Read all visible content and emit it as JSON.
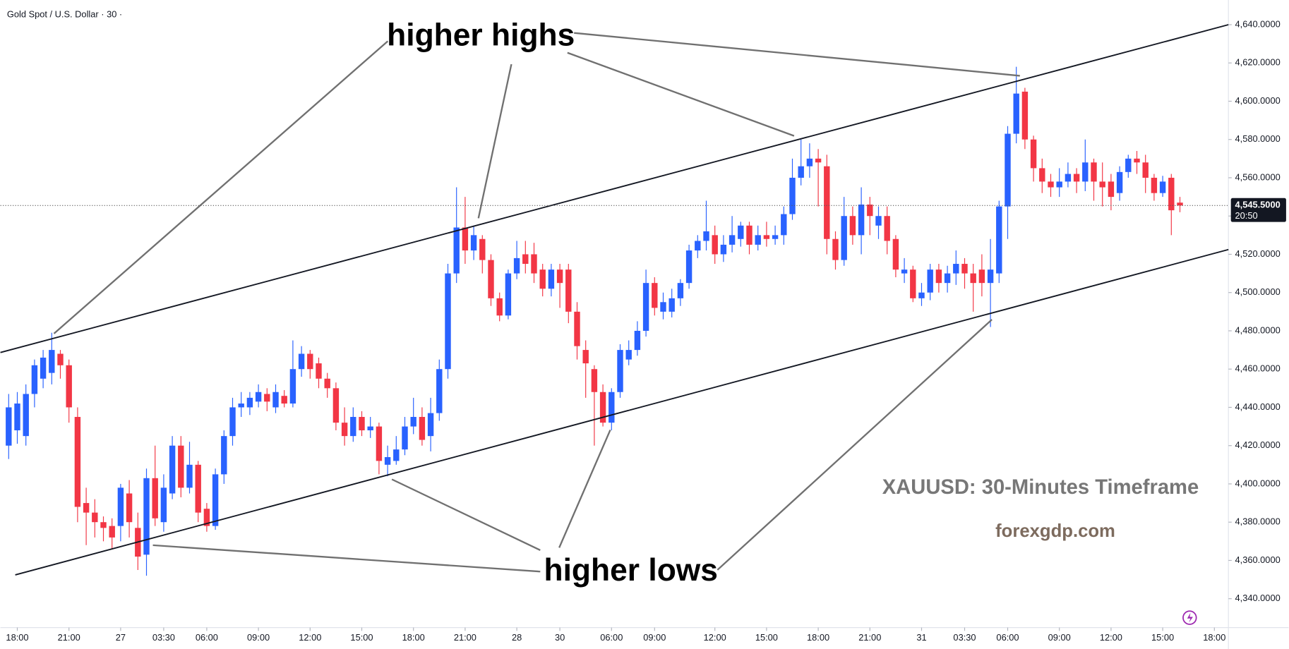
{
  "chart_data": {
    "type": "candlestick",
    "title": "Gold Spot / U.S. Dollar · 30 ·",
    "up_color": "#2962ff",
    "down_color": "#f23645",
    "open": [
      4420,
      4428,
      4425,
      4447,
      4455,
      4458,
      4468,
      4462,
      4435,
      4390,
      4385,
      4380,
      4378,
      4378,
      4395,
      4377,
      4363,
      4403,
      4380,
      4395,
      4420,
      4398,
      4410,
      4387,
      4378,
      4405,
      4425,
      4440,
      4440,
      4443,
      4447,
      4440,
      4446,
      4442,
      4460,
      4468,
      4463,
      4455,
      4450,
      4432,
      4425,
      4435,
      4428,
      4430,
      4410,
      4412,
      4418,
      4430,
      4435,
      4425,
      4437,
      4460,
      4510,
      4534,
      4522,
      4528,
      4517,
      4497,
      4488,
      4510,
      4520,
      4520,
      4512,
      4502,
      4512,
      4512,
      4490,
      4470,
      4460,
      4448,
      4432,
      4448,
      4465,
      4470,
      4480,
      4505,
      4490,
      4490,
      4497,
      4505,
      4522,
      4527,
      4530,
      4520,
      4525,
      4528,
      4535,
      4525,
      4530,
      4528,
      4530,
      4541,
      4560,
      4566,
      4570,
      4566,
      4528,
      4517,
      4540,
      4530,
      4546,
      4535,
      4540,
      4528,
      4510,
      4512,
      4497,
      4500,
      4512,
      4505,
      4510,
      4515,
      4510,
      4512,
      4505,
      4510,
      4545,
      4583,
      4605,
      4580,
      4565,
      4558,
      4555,
      4558,
      4562,
      4558,
      4568,
      4558,
      4558,
      4552,
      4563,
      4570,
      4568,
      4560,
      4552,
      4560,
      4547
    ],
    "high": [
      4447,
      4448,
      4452,
      4465,
      4470,
      4479,
      4470,
      4465,
      4440,
      4398,
      4392,
      4383,
      4382,
      4400,
      4402,
      4385,
      4408,
      4420,
      4405,
      4425,
      4425,
      4422,
      4412,
      4390,
      4408,
      4428,
      4445,
      4448,
      4448,
      4452,
      4450,
      4452,
      4449,
      4475,
      4472,
      4470,
      4466,
      4458,
      4453,
      4440,
      4440,
      4438,
      4435,
      4432,
      4420,
      4425,
      4435,
      4445,
      4440,
      4445,
      4465,
      4515,
      4555,
      4550,
      4535,
      4530,
      4520,
      4500,
      4512,
      4527,
      4527,
      4526,
      4515,
      4515,
      4515,
      4515,
      4495,
      4475,
      4462,
      4452,
      4450,
      4473,
      4475,
      4485,
      4512,
      4508,
      4500,
      4502,
      4507,
      4525,
      4530,
      4548,
      4535,
      4530,
      4540,
      4537,
      4537,
      4535,
      4537,
      4535,
      4545,
      4570,
      4580,
      4578,
      4575,
      4572,
      4532,
      4550,
      4545,
      4555,
      4550,
      4545,
      4545,
      4530,
      4518,
      4514,
      4505,
      4515,
      4515,
      4514,
      4522,
      4518,
      4515,
      4520,
      4528,
      4548,
      4587,
      4618,
      4607,
      4582,
      4570,
      4562,
      4565,
      4568,
      4565,
      4580,
      4570,
      4568,
      4562,
      4566,
      4572,
      4574,
      4572,
      4562,
      4561,
      4562,
      4550
    ],
    "low": [
      4413,
      4421,
      4420,
      4440,
      4450,
      4452,
      4455,
      4432,
      4380,
      4368,
      4372,
      4370,
      4366,
      4370,
      4372,
      4355,
      4352,
      4378,
      4375,
      4392,
      4393,
      4395,
      4380,
      4375,
      4376,
      4400,
      4420,
      4435,
      4436,
      4440,
      4438,
      4437,
      4440,
      4440,
      4456,
      4455,
      4450,
      4445,
      4428,
      4420,
      4422,
      4425,
      4424,
      4405,
      4404,
      4410,
      4415,
      4426,
      4420,
      4417,
      4433,
      4455,
      4505,
      4515,
      4517,
      4510,
      4493,
      4485,
      4486,
      4507,
      4510,
      4505,
      4498,
      4498,
      4492,
      4484,
      4465,
      4445,
      4420,
      4430,
      4428,
      4445,
      4462,
      4467,
      4477,
      4488,
      4486,
      4487,
      4493,
      4502,
      4518,
      4522,
      4515,
      4516,
      4521,
      4524,
      4520,
      4522,
      4524,
      4525,
      4525,
      4538,
      4556,
      4560,
      4545,
      4520,
      4512,
      4514,
      4525,
      4520,
      4530,
      4528,
      4520,
      4508,
      4505,
      4495,
      4493,
      4496,
      4500,
      4500,
      4504,
      4502,
      4490,
      4498,
      4482,
      4505,
      4528,
      4578,
      4575,
      4558,
      4552,
      4550,
      4550,
      4555,
      4552,
      4553,
      4548,
      4545,
      4543,
      4548,
      4560,
      4562,
      4552,
      4548,
      4550,
      4530,
      4542
    ],
    "close": [
      4440,
      4442,
      4447,
      4462,
      4466,
      4470,
      4462,
      4440,
      4388,
      4385,
      4380,
      4377,
      4372,
      4398,
      4380,
      4362,
      4403,
      4382,
      4398,
      4420,
      4398,
      4410,
      4385,
      4378,
      4405,
      4425,
      4440,
      4442,
      4445,
      4448,
      4443,
      4448,
      4442,
      4460,
      4468,
      4460,
      4455,
      4450,
      4432,
      4425,
      4435,
      4428,
      4430,
      4412,
      4414,
      4418,
      4430,
      4435,
      4423,
      4437,
      4460,
      4510,
      4534,
      4522,
      4530,
      4517,
      4497,
      4488,
      4510,
      4518,
      4515,
      4510,
      4502,
      4512,
      4505,
      4490,
      4472,
      4463,
      4448,
      4432,
      4448,
      4470,
      4470,
      4480,
      4505,
      4492,
      4495,
      4497,
      4505,
      4522,
      4527,
      4532,
      4520,
      4525,
      4530,
      4535,
      4525,
      4530,
      4528,
      4530,
      4541,
      4560,
      4566,
      4570,
      4568,
      4528,
      4517,
      4540,
      4530,
      4546,
      4540,
      4540,
      4527,
      4512,
      4512,
      4497,
      4500,
      4512,
      4505,
      4510,
      4515,
      4510,
      4505,
      4505,
      4512,
      4545,
      4583,
      4604,
      4580,
      4565,
      4558,
      4555,
      4558,
      4562,
      4558,
      4568,
      4558,
      4555,
      4550,
      4563,
      4570,
      4568,
      4560,
      4552,
      4558,
      4543,
      4545.5
    ],
    "xlim": [
      -0.96,
      141.63
    ],
    "xticks": [
      {
        "value": 1,
        "label": "18:00"
      },
      {
        "value": 7,
        "label": "21:00"
      },
      {
        "value": 13,
        "label": "27"
      },
      {
        "value": 18,
        "label": "03:30"
      },
      {
        "value": 23,
        "label": "06:00"
      },
      {
        "value": 29,
        "label": "09:00"
      },
      {
        "value": 35,
        "label": "12:00"
      },
      {
        "value": 41,
        "label": "15:00"
      },
      {
        "value": 47,
        "label": "18:00"
      },
      {
        "value": 53,
        "label": "21:00"
      },
      {
        "value": 59,
        "label": "28"
      },
      {
        "value": 64,
        "label": "30"
      },
      {
        "value": 70,
        "label": "06:00"
      },
      {
        "value": 75,
        "label": "09:00"
      },
      {
        "value": 82,
        "label": "12:00"
      },
      {
        "value": 88,
        "label": "15:00"
      },
      {
        "value": 94,
        "label": "18:00"
      },
      {
        "value": 100,
        "label": "21:00"
      },
      {
        "value": 106,
        "label": "31"
      },
      {
        "value": 111,
        "label": "03:30"
      },
      {
        "value": 116,
        "label": "06:00"
      },
      {
        "value": 122,
        "label": "09:00"
      },
      {
        "value": 128,
        "label": "12:00"
      },
      {
        "value": 134,
        "label": "15:00"
      },
      {
        "value": 140,
        "label": "18:00"
      }
    ],
    "ylim": [
      4324.9,
      4652.9
    ],
    "yticks": [
      {
        "value": 4340,
        "label": "4,340.0000"
      },
      {
        "value": 4360,
        "label": "4,360.0000"
      },
      {
        "value": 4380,
        "label": "4,380.0000"
      },
      {
        "value": 4400,
        "label": "4,400.0000"
      },
      {
        "value": 4420,
        "label": "4,420.0000"
      },
      {
        "value": 4440,
        "label": "4,440.0000"
      },
      {
        "value": 4460,
        "label": "4,460.0000"
      },
      {
        "value": 4480,
        "label": "4,480.0000"
      },
      {
        "value": 4500,
        "label": "4,500.0000"
      },
      {
        "value": 4520,
        "label": "4,520.0000"
      },
      {
        "value": 4540,
        "label": "4,540.0000"
      },
      {
        "value": 4560,
        "label": "4,560.0000"
      },
      {
        "value": 4580,
        "label": "4,580.0000"
      },
      {
        "value": 4600,
        "label": "4,600.0000"
      },
      {
        "value": 4620,
        "label": "4,620.0000"
      },
      {
        "value": 4640,
        "label": "4,640.0000"
      }
    ],
    "last_price": {
      "value": 4545.5,
      "label": "4,545.5000"
    },
    "countdown": "20:50",
    "annotations": [
      "higher highs",
      "higher lows"
    ],
    "watermark": [
      "XAUUSD: 30-Minutes Timeframe",
      "forexgdp.com"
    ]
  }
}
